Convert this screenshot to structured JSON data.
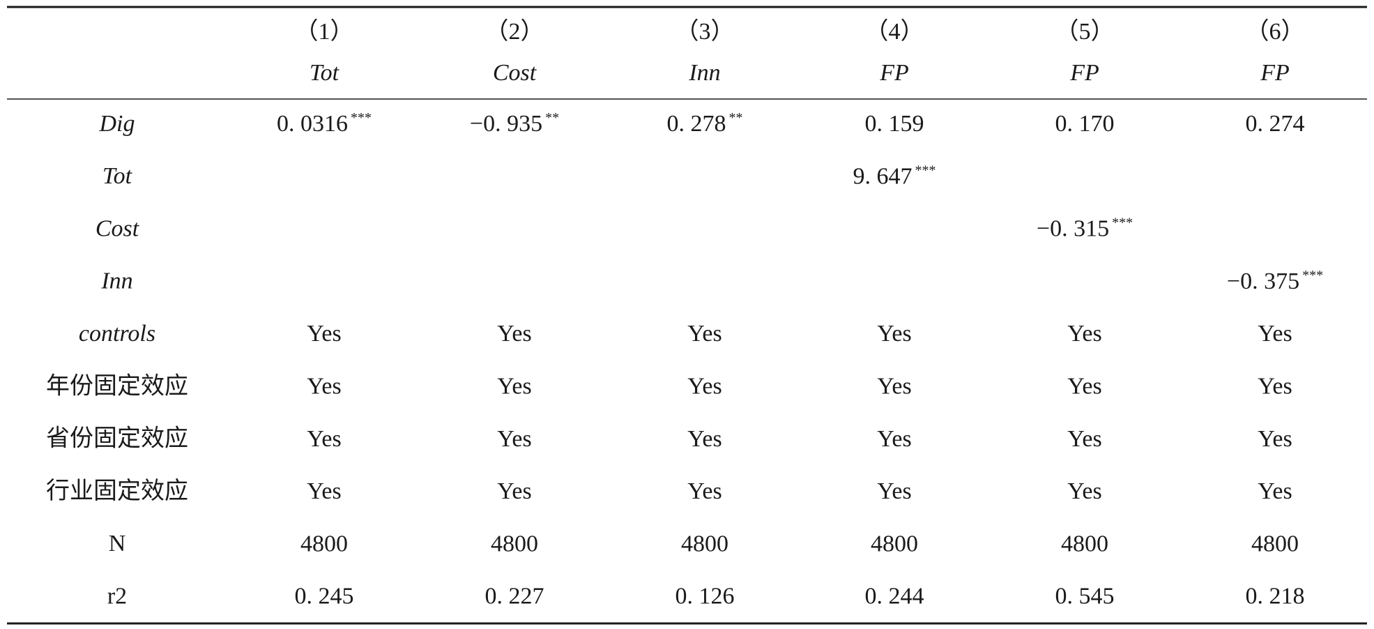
{
  "table": {
    "columns": [
      {
        "number": "（1）",
        "name": "Tot"
      },
      {
        "number": "（2）",
        "name": "Cost"
      },
      {
        "number": "（3）",
        "name": "Inn"
      },
      {
        "number": "（4）",
        "name": "FP"
      },
      {
        "number": "（5）",
        "name": "FP"
      },
      {
        "number": "（6）",
        "name": "FP"
      }
    ],
    "rows": [
      {
        "label": "Dig",
        "italic": true,
        "cells": [
          {
            "value": "0. 0316",
            "stars": "***"
          },
          {
            "value": "−0. 935",
            "stars": "**"
          },
          {
            "value": "0. 278",
            "stars": "**"
          },
          {
            "value": "0. 159"
          },
          {
            "value": "0. 170"
          },
          {
            "value": "0. 274"
          }
        ]
      },
      {
        "label": "Tot",
        "italic": true,
        "cells": [
          null,
          null,
          null,
          {
            "value": "9. 647",
            "stars": "***"
          },
          null,
          null
        ]
      },
      {
        "label": "Cost",
        "italic": true,
        "cells": [
          null,
          null,
          null,
          null,
          {
            "value": "−0. 315",
            "stars": "***"
          },
          null
        ]
      },
      {
        "label": "Inn",
        "italic": true,
        "cells": [
          null,
          null,
          null,
          null,
          null,
          {
            "value": "−0. 375",
            "stars": "***"
          }
        ]
      },
      {
        "label": "controls",
        "italic": true,
        "cells": [
          {
            "value": "Yes"
          },
          {
            "value": "Yes"
          },
          {
            "value": "Yes"
          },
          {
            "value": "Yes"
          },
          {
            "value": "Yes"
          },
          {
            "value": "Yes"
          }
        ]
      },
      {
        "label": "年份固定效应",
        "italic": false,
        "cells": [
          {
            "value": "Yes"
          },
          {
            "value": "Yes"
          },
          {
            "value": "Yes"
          },
          {
            "value": "Yes"
          },
          {
            "value": "Yes"
          },
          {
            "value": "Yes"
          }
        ]
      },
      {
        "label": "省份固定效应",
        "italic": false,
        "cells": [
          {
            "value": "Yes"
          },
          {
            "value": "Yes"
          },
          {
            "value": "Yes"
          },
          {
            "value": "Yes"
          },
          {
            "value": "Yes"
          },
          {
            "value": "Yes"
          }
        ]
      },
      {
        "label": "行业固定效应",
        "italic": false,
        "cells": [
          {
            "value": "Yes"
          },
          {
            "value": "Yes"
          },
          {
            "value": "Yes"
          },
          {
            "value": "Yes"
          },
          {
            "value": "Yes"
          },
          {
            "value": "Yes"
          }
        ]
      },
      {
        "label": "N",
        "italic": false,
        "cells": [
          {
            "value": "4800"
          },
          {
            "value": "4800"
          },
          {
            "value": "4800"
          },
          {
            "value": "4800"
          },
          {
            "value": "4800"
          },
          {
            "value": "4800"
          }
        ]
      },
      {
        "label": "r2",
        "italic": false,
        "cells": [
          {
            "value": "0. 245"
          },
          {
            "value": "0. 227"
          },
          {
            "value": "0. 126"
          },
          {
            "value": "0. 244"
          },
          {
            "value": "0. 545"
          },
          {
            "value": "0. 218"
          }
        ]
      }
    ]
  }
}
